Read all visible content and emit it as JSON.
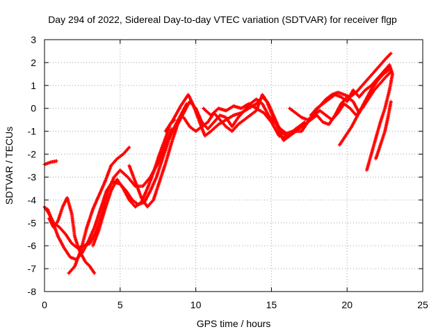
{
  "chart_data": {
    "type": "scatter",
    "title": "Day 294 of 2022, Sidereal Day-to-day VTEC variation (SDTVAR) for receiver flgp",
    "xlabel": "GPS time / hours",
    "ylabel": "SDTVAR / TECUs",
    "xlim": [
      0,
      25
    ],
    "ylim": [
      -8,
      3
    ],
    "xticks": [
      "0",
      "5",
      "10",
      "15",
      "20",
      "25"
    ],
    "yticks": [
      "-8",
      "-7",
      "-6",
      "-5",
      "-4",
      "-3",
      "-2",
      "-1",
      "0",
      "1",
      "2",
      "3"
    ],
    "grid": true,
    "marker": "+",
    "series": [
      {
        "color": "#ff0000",
        "tracks": [
          [
            [
              0,
              -2.45
            ],
            [
              0.4,
              -2.35
            ],
            [
              0.8,
              -2.3
            ]
          ],
          [
            [
              0,
              -4.3
            ],
            [
              0.3,
              -4.6
            ],
            [
              0.6,
              -5.0
            ],
            [
              1.0,
              -5.2
            ],
            [
              1.4,
              -5.5
            ],
            [
              1.8,
              -5.9
            ],
            [
              2.2,
              -6.1
            ],
            [
              2.6,
              -6.0
            ],
            [
              3.0,
              -5.9
            ],
            [
              3.4,
              -5.4
            ],
            [
              3.8,
              -4.6
            ],
            [
              4.2,
              -3.6
            ],
            [
              4.6,
              -3.0
            ],
            [
              5.0,
              -2.7
            ],
            [
              5.5,
              -3.0
            ],
            [
              6.0,
              -3.4
            ],
            [
              6.5,
              -3.4
            ],
            [
              7.0,
              -3.0
            ],
            [
              7.5,
              -2.4
            ],
            [
              8.0,
              -1.6
            ],
            [
              8.4,
              -0.9
            ]
          ],
          [
            [
              0.2,
              -4.4
            ],
            [
              0.5,
              -4.9
            ],
            [
              0.9,
              -5.6
            ],
            [
              1.3,
              -6.1
            ],
            [
              1.7,
              -6.5
            ],
            [
              2.1,
              -6.6
            ],
            [
              2.5,
              -6.3
            ],
            [
              2.9,
              -5.8
            ],
            [
              3.3,
              -5.2
            ],
            [
              3.7,
              -4.4
            ],
            [
              4.1,
              -3.6
            ],
            [
              4.5,
              -3.2
            ],
            [
              5.0,
              -3.3
            ],
            [
              5.4,
              -3.6
            ],
            [
              5.8,
              -4.0
            ],
            [
              6.2,
              -4.2
            ],
            [
              6.6,
              -4.1
            ],
            [
              7.0,
              -3.6
            ],
            [
              7.4,
              -3.0
            ],
            [
              7.8,
              -2.2
            ],
            [
              8.2,
              -1.4
            ],
            [
              8.6,
              -0.8
            ],
            [
              9.0,
              -0.3
            ],
            [
              9.4,
              0.2
            ]
          ],
          [
            [
              0.3,
              -4.8
            ],
            [
              0.6,
              -5.2
            ],
            [
              0.9,
              -4.9
            ],
            [
              1.2,
              -4.3
            ],
            [
              1.5,
              -3.9
            ],
            [
              1.8,
              -4.6
            ],
            [
              2.0,
              -5.6
            ],
            [
              2.3,
              -6.2
            ],
            [
              2.7,
              -6.7
            ],
            [
              3.0,
              -6.9
            ],
            [
              3.3,
              -7.2
            ]
          ],
          [
            [
              1.6,
              -7.2
            ],
            [
              2.0,
              -6.9
            ],
            [
              2.4,
              -6.2
            ],
            [
              2.8,
              -5.2
            ],
            [
              3.2,
              -4.4
            ],
            [
              3.6,
              -3.8
            ],
            [
              4.0,
              -3.2
            ],
            [
              4.4,
              -2.5
            ],
            [
              4.8,
              -2.2
            ],
            [
              5.2,
              -2.0
            ],
            [
              5.6,
              -1.7
            ]
          ],
          [
            [
              3.2,
              -6.0
            ],
            [
              3.6,
              -5.3
            ],
            [
              4.0,
              -4.4
            ],
            [
              4.4,
              -3.6
            ],
            [
              4.8,
              -3.1
            ],
            [
              5.2,
              -3.5
            ],
            [
              5.6,
              -4.0
            ],
            [
              6.0,
              -4.3
            ],
            [
              6.4,
              -4.1
            ],
            [
              6.8,
              -3.5
            ],
            [
              7.2,
              -2.8
            ],
            [
              7.6,
              -2.0
            ],
            [
              8.0,
              -1.3
            ],
            [
              8.3,
              -0.7
            ],
            [
              8.6,
              -0.5
            ]
          ],
          [
            [
              5.6,
              -2.5
            ],
            [
              6.0,
              -3.2
            ],
            [
              6.4,
              -3.9
            ],
            [
              6.8,
              -4.3
            ],
            [
              7.2,
              -4.0
            ],
            [
              7.6,
              -3.2
            ],
            [
              8.0,
              -2.4
            ],
            [
              8.4,
              -1.5
            ],
            [
              8.8,
              -0.7
            ],
            [
              9.2,
              -0.2
            ],
            [
              9.6,
              0.3
            ],
            [
              10.0,
              0.0
            ],
            [
              10.4,
              -0.6
            ],
            [
              10.8,
              -0.9
            ],
            [
              11.2,
              -0.6
            ],
            [
              11.6,
              -0.3
            ],
            [
              12.0,
              -0.4
            ],
            [
              12.4,
              -0.8
            ],
            [
              12.8,
              -0.4
            ],
            [
              13.2,
              -0.1
            ],
            [
              13.6,
              0.2
            ],
            [
              14.0,
              0.4
            ],
            [
              14.4,
              0.2
            ],
            [
              14.8,
              -0.3
            ],
            [
              15.2,
              -0.6
            ],
            [
              15.6,
              -0.9
            ],
            [
              16.0,
              -1.1
            ],
            [
              16.4,
              -1.0
            ],
            [
              16.8,
              -0.8
            ],
            [
              17.2,
              -0.6
            ]
          ],
          [
            [
              8.0,
              -1.0
            ],
            [
              8.5,
              -0.5
            ],
            [
              9.0,
              0.1
            ],
            [
              9.5,
              0.6
            ],
            [
              9.8,
              0.2
            ],
            [
              10.2,
              -0.5
            ],
            [
              10.6,
              -1.2
            ],
            [
              11.0,
              -1.0
            ],
            [
              11.5,
              -0.7
            ],
            [
              12.0,
              -0.5
            ],
            [
              12.5,
              -0.3
            ],
            [
              13.0,
              -0.2
            ],
            [
              13.5,
              0.0
            ],
            [
              14.0,
              0.2
            ],
            [
              14.4,
              0.5
            ],
            [
              14.7,
              0.3
            ],
            [
              15.0,
              -0.2
            ],
            [
              15.4,
              -0.8
            ],
            [
              15.8,
              -1.4
            ],
            [
              16.2,
              -1.2
            ],
            [
              16.6,
              -1.0
            ],
            [
              17.0,
              -1.0
            ],
            [
              17.4,
              -0.6
            ],
            [
              17.8,
              -0.2
            ],
            [
              18.2,
              0.1
            ],
            [
              18.6,
              0.4
            ],
            [
              19.0,
              0.6
            ],
            [
              19.4,
              0.7
            ],
            [
              19.8,
              0.6
            ],
            [
              20.2,
              0.5
            ],
            [
              20.6,
              0.7
            ],
            [
              21.0,
              1.0
            ],
            [
              21.4,
              1.3
            ],
            [
              21.8,
              1.6
            ],
            [
              22.2,
              1.9
            ],
            [
              22.6,
              2.2
            ],
            [
              22.9,
              2.4
            ]
          ],
          [
            [
              9.2,
              -0.4
            ],
            [
              9.6,
              -0.8
            ],
            [
              10.0,
              -1.0
            ],
            [
              10.4,
              -0.8
            ],
            [
              10.8,
              -0.6
            ],
            [
              11.2,
              -0.2
            ],
            [
              11.6,
              -0.5
            ],
            [
              12.0,
              -0.8
            ],
            [
              12.4,
              -1.0
            ],
            [
              12.8,
              -0.7
            ],
            [
              13.2,
              -0.5
            ],
            [
              13.6,
              -0.3
            ],
            [
              14.0,
              -0.1
            ],
            [
              14.4,
              0.6
            ],
            [
              14.8,
              0.2
            ],
            [
              15.2,
              -0.4
            ],
            [
              15.6,
              -1.0
            ],
            [
              16.0,
              -1.2
            ],
            [
              16.4,
              -1.1
            ],
            [
              16.8,
              -0.9
            ],
            [
              17.2,
              -0.7
            ],
            [
              17.6,
              -0.5
            ],
            [
              18.0,
              -0.3
            ],
            [
              18.4,
              -0.6
            ],
            [
              18.8,
              -0.7
            ],
            [
              19.2,
              -0.3
            ],
            [
              19.6,
              0.2
            ],
            [
              20.0,
              0.5
            ],
            [
              20.4,
              0.3
            ],
            [
              20.8,
              -0.2
            ],
            [
              21.2,
              0.3
            ],
            [
              21.6,
              0.8
            ],
            [
              22.0,
              1.2
            ],
            [
              22.4,
              1.5
            ],
            [
              22.8,
              1.7
            ]
          ],
          [
            [
              10.5,
              0.0
            ],
            [
              11.0,
              -0.3
            ],
            [
              11.5,
              0.0
            ],
            [
              12.0,
              -0.1
            ],
            [
              12.5,
              0.1
            ],
            [
              13.0,
              0.0
            ],
            [
              13.5,
              0.2
            ],
            [
              14.0,
              0.0
            ],
            [
              14.5,
              -0.2
            ],
            [
              15.0,
              -0.6
            ],
            [
              15.5,
              -1.2
            ],
            [
              16.0,
              -1.3
            ]
          ],
          [
            [
              16.2,
              0.0
            ],
            [
              16.6,
              -0.2
            ],
            [
              17.0,
              -0.4
            ],
            [
              17.4,
              -0.5
            ],
            [
              17.8,
              -0.3
            ],
            [
              18.2,
              -0.1
            ],
            [
              18.6,
              -0.3
            ],
            [
              19.0,
              -0.5
            ],
            [
              19.4,
              -0.2
            ],
            [
              19.8,
              0.2
            ],
            [
              20.2,
              0.0
            ],
            [
              20.6,
              -0.3
            ],
            [
              21.0,
              0.0
            ],
            [
              21.4,
              0.4
            ],
            [
              21.8,
              0.8
            ],
            [
              22.2,
              1.1
            ],
            [
              22.6,
              1.4
            ],
            [
              22.9,
              1.6
            ]
          ],
          [
            [
              17.6,
              -0.3
            ],
            [
              18.0,
              0.0
            ],
            [
              18.4,
              0.2
            ],
            [
              18.8,
              0.4
            ],
            [
              19.2,
              0.6
            ],
            [
              19.6,
              0.5
            ],
            [
              20.0,
              0.3
            ],
            [
              20.4,
              0.8
            ],
            [
              20.8,
              0.5
            ],
            [
              21.2,
              0.8
            ],
            [
              21.6,
              1.0
            ],
            [
              22.0,
              1.3
            ],
            [
              22.4,
              1.6
            ],
            [
              22.8,
              1.9
            ]
          ],
          [
            [
              19.5,
              -1.6
            ],
            [
              19.9,
              -1.2
            ],
            [
              20.3,
              -0.8
            ],
            [
              20.7,
              -0.3
            ],
            [
              21.1,
              0.2
            ],
            [
              21.5,
              0.7
            ],
            [
              21.9,
              1.2
            ],
            [
              22.3,
              1.5
            ],
            [
              22.7,
              1.8
            ]
          ],
          [
            [
              21.3,
              -2.7
            ],
            [
              21.6,
              -2.0
            ],
            [
              21.9,
              -1.3
            ],
            [
              22.2,
              -0.6
            ],
            [
              22.5,
              0.0
            ],
            [
              22.8,
              0.8
            ],
            [
              23.0,
              1.5
            ],
            [
              22.8,
              1.9
            ]
          ],
          [
            [
              21.9,
              -2.2
            ],
            [
              22.2,
              -1.6
            ],
            [
              22.5,
              -1.0
            ],
            [
              22.7,
              -0.4
            ],
            [
              22.9,
              0.3
            ]
          ]
        ]
      }
    ]
  }
}
